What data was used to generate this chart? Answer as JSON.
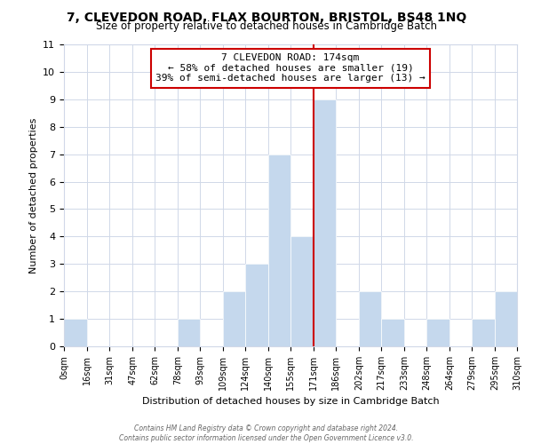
{
  "title": "7, CLEVEDON ROAD, FLAX BOURTON, BRISTOL, BS48 1NQ",
  "subtitle": "Size of property relative to detached houses in Cambridge Batch",
  "xlabel": "Distribution of detached houses by size in Cambridge Batch",
  "ylabel": "Number of detached properties",
  "bin_edges": [
    0,
    16,
    31,
    47,
    62,
    78,
    93,
    109,
    124,
    140,
    155,
    171,
    186,
    202,
    217,
    233,
    248,
    264,
    279,
    295,
    310
  ],
  "bin_labels": [
    "0sqm",
    "16sqm",
    "31sqm",
    "47sqm",
    "62sqm",
    "78sqm",
    "93sqm",
    "109sqm",
    "124sqm",
    "140sqm",
    "155sqm",
    "171sqm",
    "186sqm",
    "202sqm",
    "217sqm",
    "233sqm",
    "248sqm",
    "264sqm",
    "279sqm",
    "295sqm",
    "310sqm"
  ],
  "counts": [
    1,
    0,
    0,
    0,
    0,
    1,
    0,
    2,
    3,
    7,
    4,
    9,
    0,
    2,
    1,
    0,
    1,
    0,
    1,
    2
  ],
  "bar_color": "#c5d8ed",
  "vline_x": 171,
  "vline_color": "#cc0000",
  "annotation_title": "7 CLEVEDON ROAD: 174sqm",
  "annotation_line1": "← 58% of detached houses are smaller (19)",
  "annotation_line2": "39% of semi-detached houses are larger (13) →",
  "annotation_box_color": "#ffffff",
  "annotation_box_edge": "#cc0000",
  "ylim": [
    0,
    11
  ],
  "yticks": [
    0,
    1,
    2,
    3,
    4,
    5,
    6,
    7,
    8,
    9,
    10,
    11
  ],
  "background_color": "#ffffff",
  "grid_color": "#d0d8e8",
  "footer_line1": "Contains HM Land Registry data © Crown copyright and database right 2024.",
  "footer_line2": "Contains public sector information licensed under the Open Government Licence v3.0."
}
